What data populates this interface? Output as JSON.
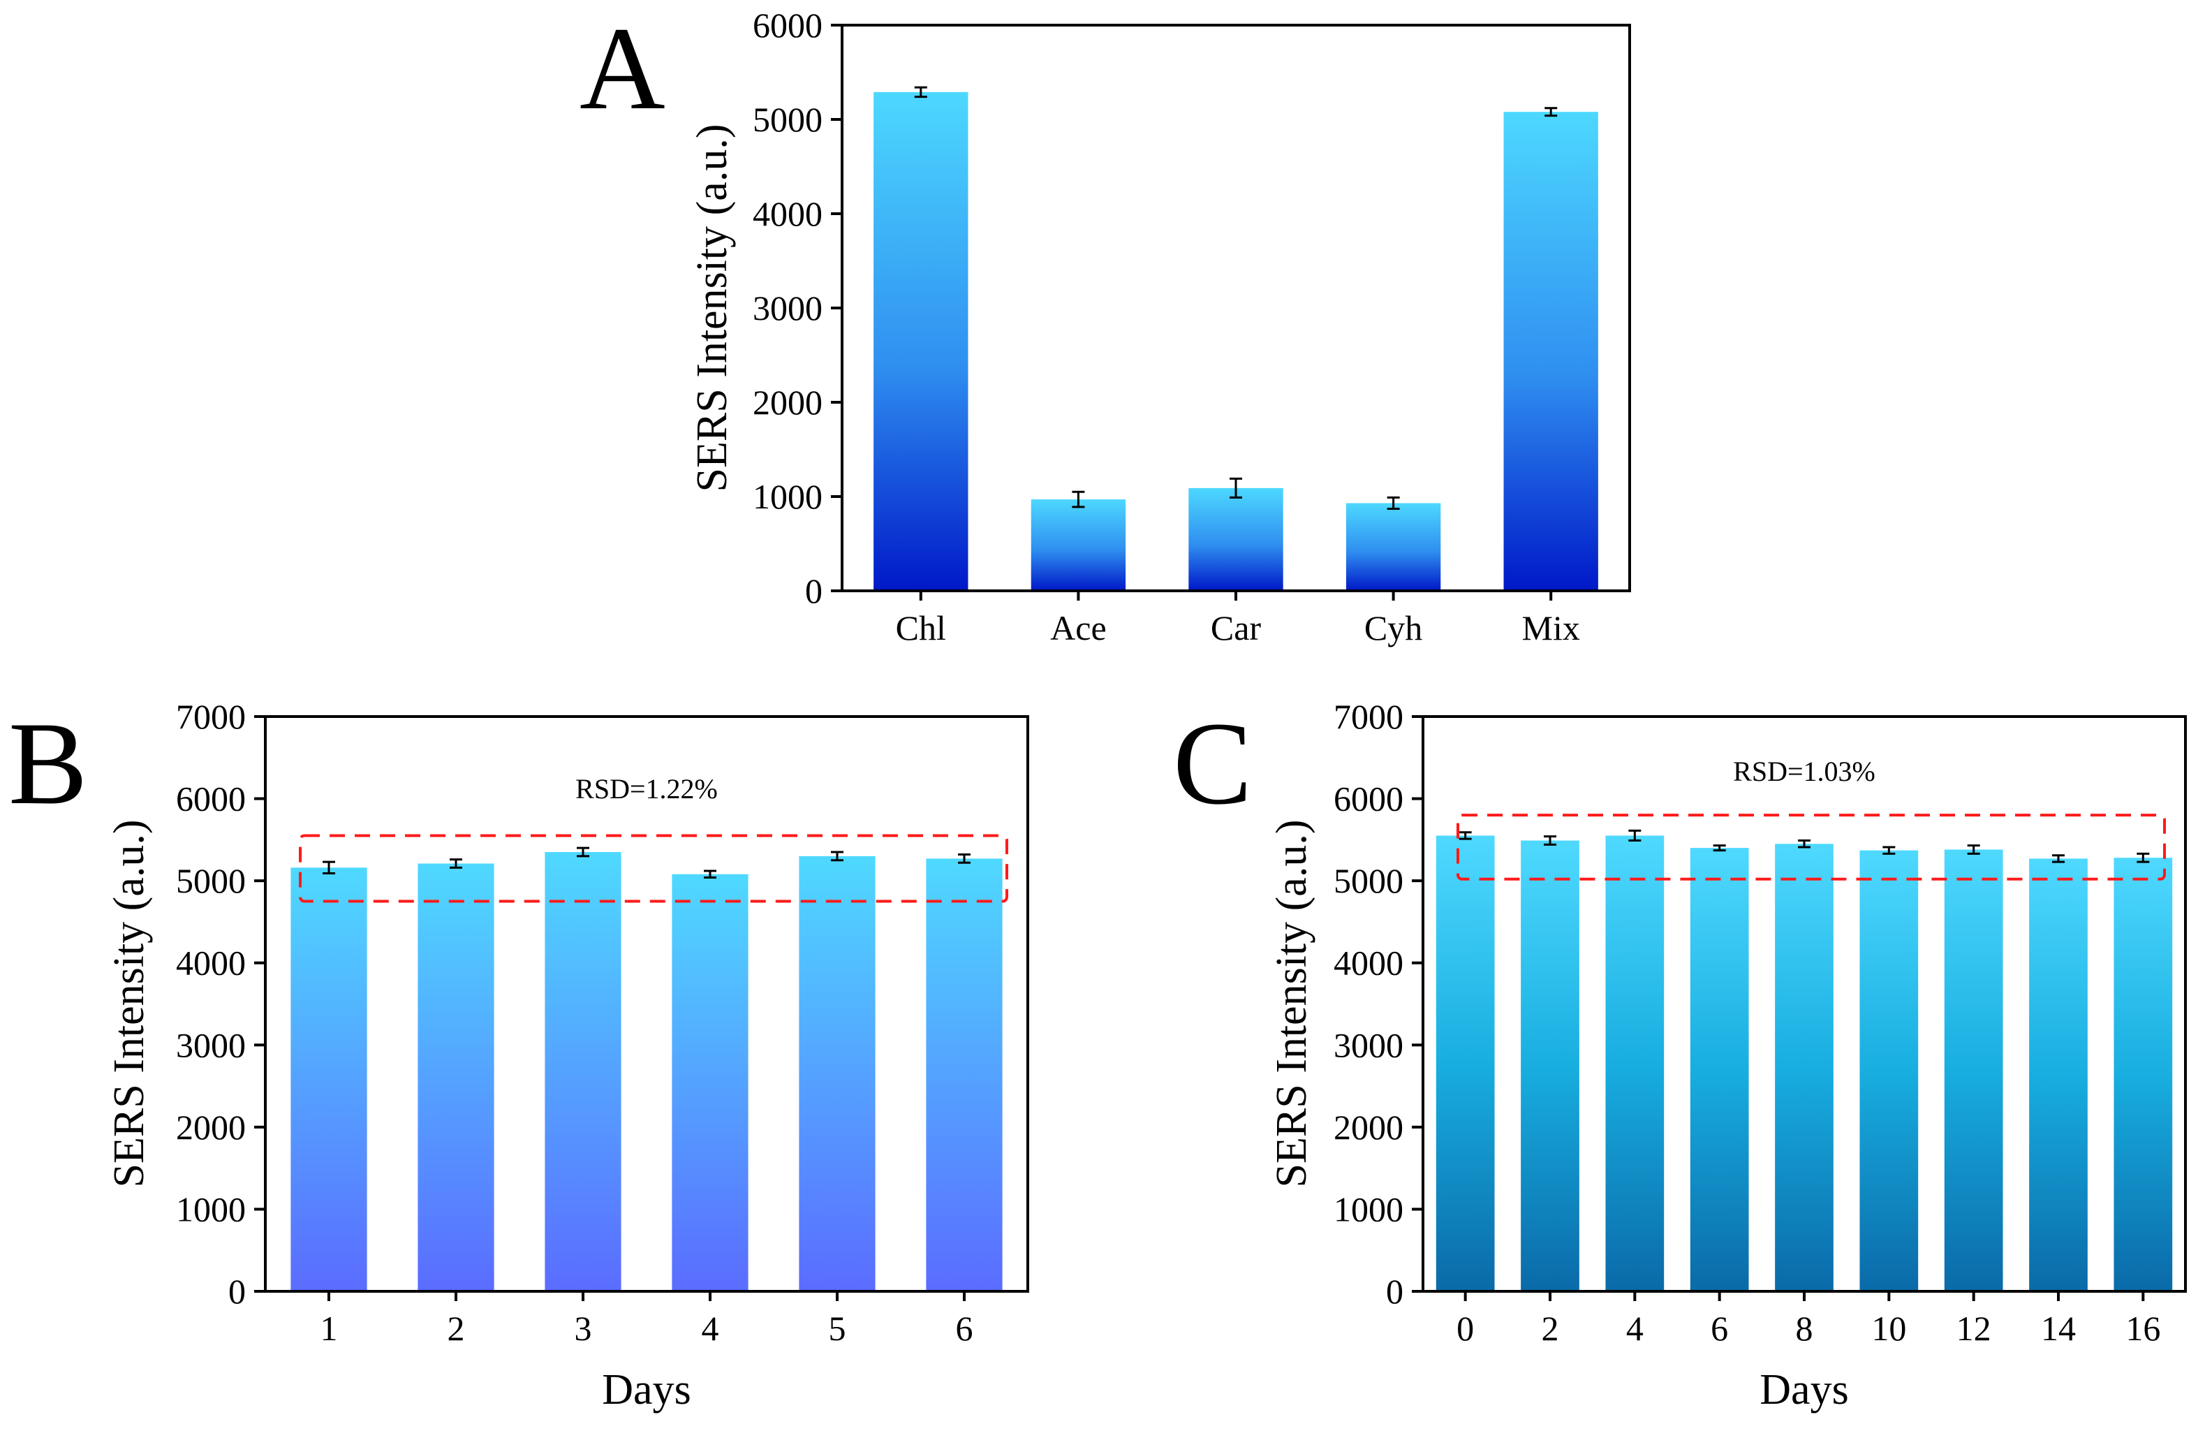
{
  "chart_data": [
    {
      "panel": "A",
      "type": "bar",
      "categories": [
        "Chl",
        "Ace",
        "Car",
        "Cyh",
        "Mix"
      ],
      "values": [
        5290,
        970,
        1090,
        930,
        5080
      ],
      "errors": [
        50,
        80,
        100,
        60,
        40
      ],
      "ylabel": "SERS Intensity (a.u.)",
      "xlabel": "",
      "ylim": [
        0,
        6000
      ],
      "yticks": [
        0,
        1000,
        2000,
        3000,
        4000,
        5000,
        6000
      ],
      "colors": {
        "top": "#4dd8ff",
        "bottom": "#0018c8"
      }
    },
    {
      "panel": "B",
      "type": "bar",
      "categories": [
        "1",
        "2",
        "3",
        "4",
        "5",
        "6"
      ],
      "values": [
        5160,
        5210,
        5350,
        5080,
        5300,
        5270
      ],
      "errors": [
        70,
        50,
        50,
        40,
        50,
        50
      ],
      "ylabel": "SERS Intensity (a.u.)",
      "xlabel": "Days",
      "ylim": [
        0,
        7000
      ],
      "yticks": [
        0,
        1000,
        2000,
        3000,
        4000,
        5000,
        6000,
        7000
      ],
      "annotation": "RSD=1.22%",
      "band": [
        4750,
        5550
      ],
      "colors": {
        "top": "#4fd9ff",
        "bottom": "#5a6cff",
        "band": "#ff1a1a"
      }
    },
    {
      "panel": "C",
      "type": "bar",
      "categories": [
        "0",
        "2",
        "4",
        "6",
        "8",
        "10",
        "12",
        "14",
        "16"
      ],
      "values": [
        5550,
        5490,
        5550,
        5400,
        5450,
        5370,
        5380,
        5270,
        5280
      ],
      "errors": [
        40,
        50,
        60,
        30,
        40,
        40,
        50,
        40,
        50
      ],
      "ylabel": "SERS Intensity (a.u.)",
      "xlabel": "Days",
      "ylim": [
        0,
        7000
      ],
      "yticks": [
        0,
        1000,
        2000,
        3000,
        4000,
        5000,
        6000,
        7000
      ],
      "annotation": "RSD=1.03%",
      "band": [
        5020,
        5800
      ],
      "colors": {
        "top": "#4fd9ff",
        "mid": "#18aee0",
        "bottom": "#0a6aa8",
        "band": "#ff1a1a"
      }
    }
  ]
}
